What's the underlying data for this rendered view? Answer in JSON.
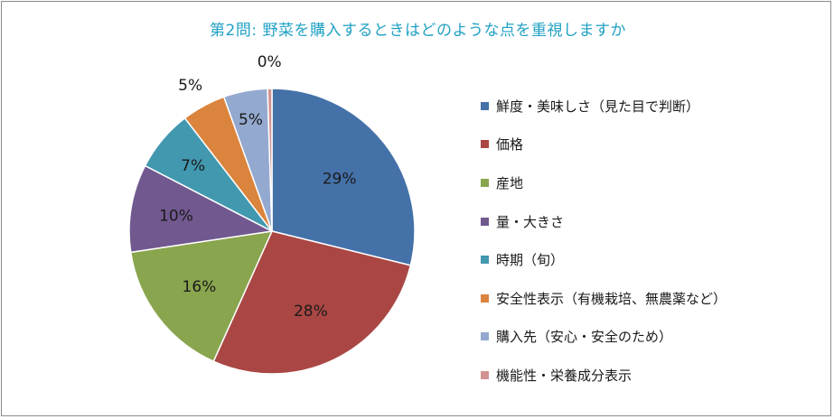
{
  "chart_data": {
    "type": "pie",
    "title": "第2問: 野菜を購入するときはどのような点を重視しますか",
    "legend_position": "right",
    "start_angle": "12 o'clock, clockwise",
    "series": [
      {
        "name": "鮮度・美味しさ（見た目で判断）",
        "value": 29,
        "label": "29%",
        "color": "#4571a9"
      },
      {
        "name": "価格",
        "value": 28,
        "label": "28%",
        "color": "#aa4744"
      },
      {
        "name": "産地",
        "value": 16,
        "label": "16%",
        "color": "#89a54e"
      },
      {
        "name": "量・大きさ",
        "value": 10,
        "label": "10%",
        "color": "#71588f"
      },
      {
        "name": "時期（旬）",
        "value": 7,
        "label": "7%",
        "color": "#4198af"
      },
      {
        "name": "安全性表示（有機栽培、無農薬など）",
        "value": 5,
        "label": "5%",
        "color": "#db843d"
      },
      {
        "name": "購入先（安心・安全のため）",
        "value": 5,
        "label": "5%",
        "color": "#93a9cf"
      },
      {
        "name": "機能性・栄養成分表示",
        "value": 0.5,
        "label": "0%",
        "color": "#d19392"
      }
    ]
  }
}
